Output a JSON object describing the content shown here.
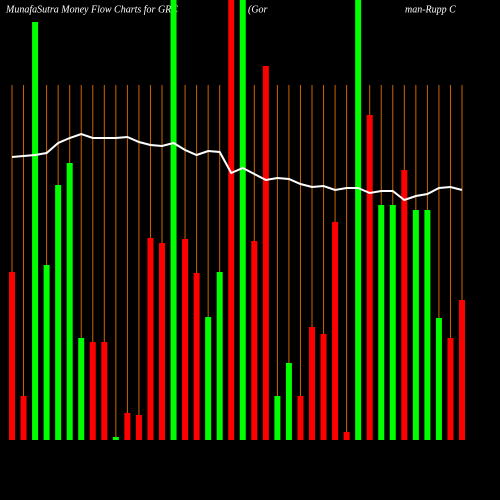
{
  "chart_data": {
    "type": "bar",
    "title": "MunafaSutra  Money Flow  Charts for GRC",
    "subtitle": [
      "(Gor",
      "man-Rupp C"
    ],
    "categories": [
      null,
      null,
      null,
      null,
      null,
      null,
      null,
      null,
      null,
      null,
      null,
      null,
      null,
      null,
      null,
      null,
      null,
      null,
      null,
      null,
      null,
      null,
      null,
      null,
      null,
      null,
      null,
      null,
      null,
      null,
      null,
      null,
      null,
      null,
      null,
      null,
      null,
      null,
      null,
      null
    ],
    "values": [
      168,
      44,
      418,
      175,
      255,
      277,
      102,
      98,
      98,
      3,
      27,
      25,
      202,
      197,
      440,
      201,
      167,
      123,
      168,
      440,
      440,
      199,
      374,
      44,
      77,
      44,
      113,
      106,
      218,
      8,
      440,
      325,
      235,
      235,
      270,
      230,
      230,
      122,
      102,
      140
    ],
    "colors": [
      "#ff0000",
      "#ff0000",
      "#00ff00",
      "#00ff00",
      "#00ff00",
      "#00ff00",
      "#00ff00",
      "#ff0000",
      "#ff0000",
      "#00ff00",
      "#ff0000",
      "#ff0000",
      "#ff0000",
      "#ff0000",
      "#00ff00",
      "#ff0000",
      "#ff0000",
      "#00ff00",
      "#00ff00",
      "#ff0000",
      "#00ff00",
      "#ff0000",
      "#ff0000",
      "#00ff00",
      "#00ff00",
      "#ff0000",
      "#ff0000",
      "#ff0000",
      "#ff0000",
      "#ff0000",
      "#00ff00",
      "#ff0000",
      "#00ff00",
      "#00ff00",
      "#ff0000",
      "#00ff00",
      "#00ff00",
      "#00ff00",
      "#ff0000",
      "#ff0000"
    ],
    "line_values": [
      283,
      284,
      285,
      287,
      297,
      302,
      306,
      302,
      302,
      302,
      303,
      298,
      295,
      294,
      297,
      290,
      285,
      289,
      288,
      267,
      272,
      266,
      260,
      262,
      261,
      256,
      253,
      254,
      250,
      252,
      252,
      247,
      249,
      249,
      240,
      244,
      246,
      252,
      253,
      250
    ],
    "line_color": "#ffffff",
    "guide_color": "#cc6600",
    "ylim": [
      0,
      440
    ]
  }
}
